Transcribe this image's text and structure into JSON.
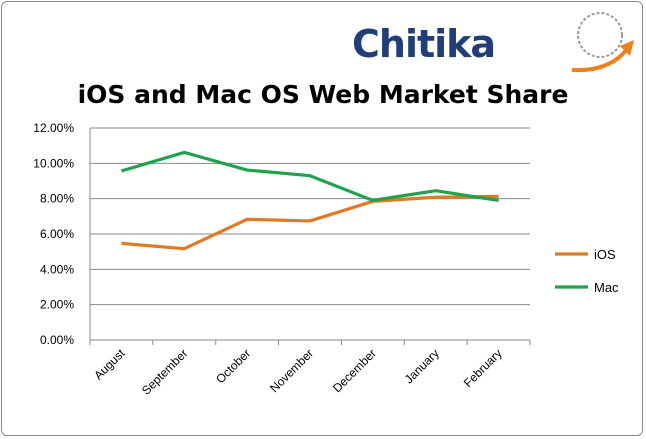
{
  "logo": {
    "text": "Chitika",
    "colors": {
      "text": "#1f3f7a",
      "arrow": "#f07f1a",
      "globe": "#9a9a9a"
    }
  },
  "chart_data": {
    "type": "line",
    "title": "iOS and Mac OS Web Market Share",
    "categories": [
      "August",
      "September",
      "October",
      "November",
      "December",
      "January",
      "February"
    ],
    "series": [
      {
        "name": "iOS",
        "color": "#e07a22",
        "values": [
          5.47,
          5.17,
          6.83,
          6.74,
          7.85,
          8.08,
          8.13
        ]
      },
      {
        "name": "Mac",
        "color": "#1fa24a",
        "values": [
          9.57,
          10.62,
          9.62,
          9.3,
          7.9,
          8.45,
          7.9
        ]
      }
    ],
    "ylim": [
      0,
      12
    ],
    "yticks": [
      "0.00%",
      "2.00%",
      "4.00%",
      "6.00%",
      "8.00%",
      "10.00%",
      "12.00%"
    ],
    "grid": true,
    "legend": "right"
  }
}
